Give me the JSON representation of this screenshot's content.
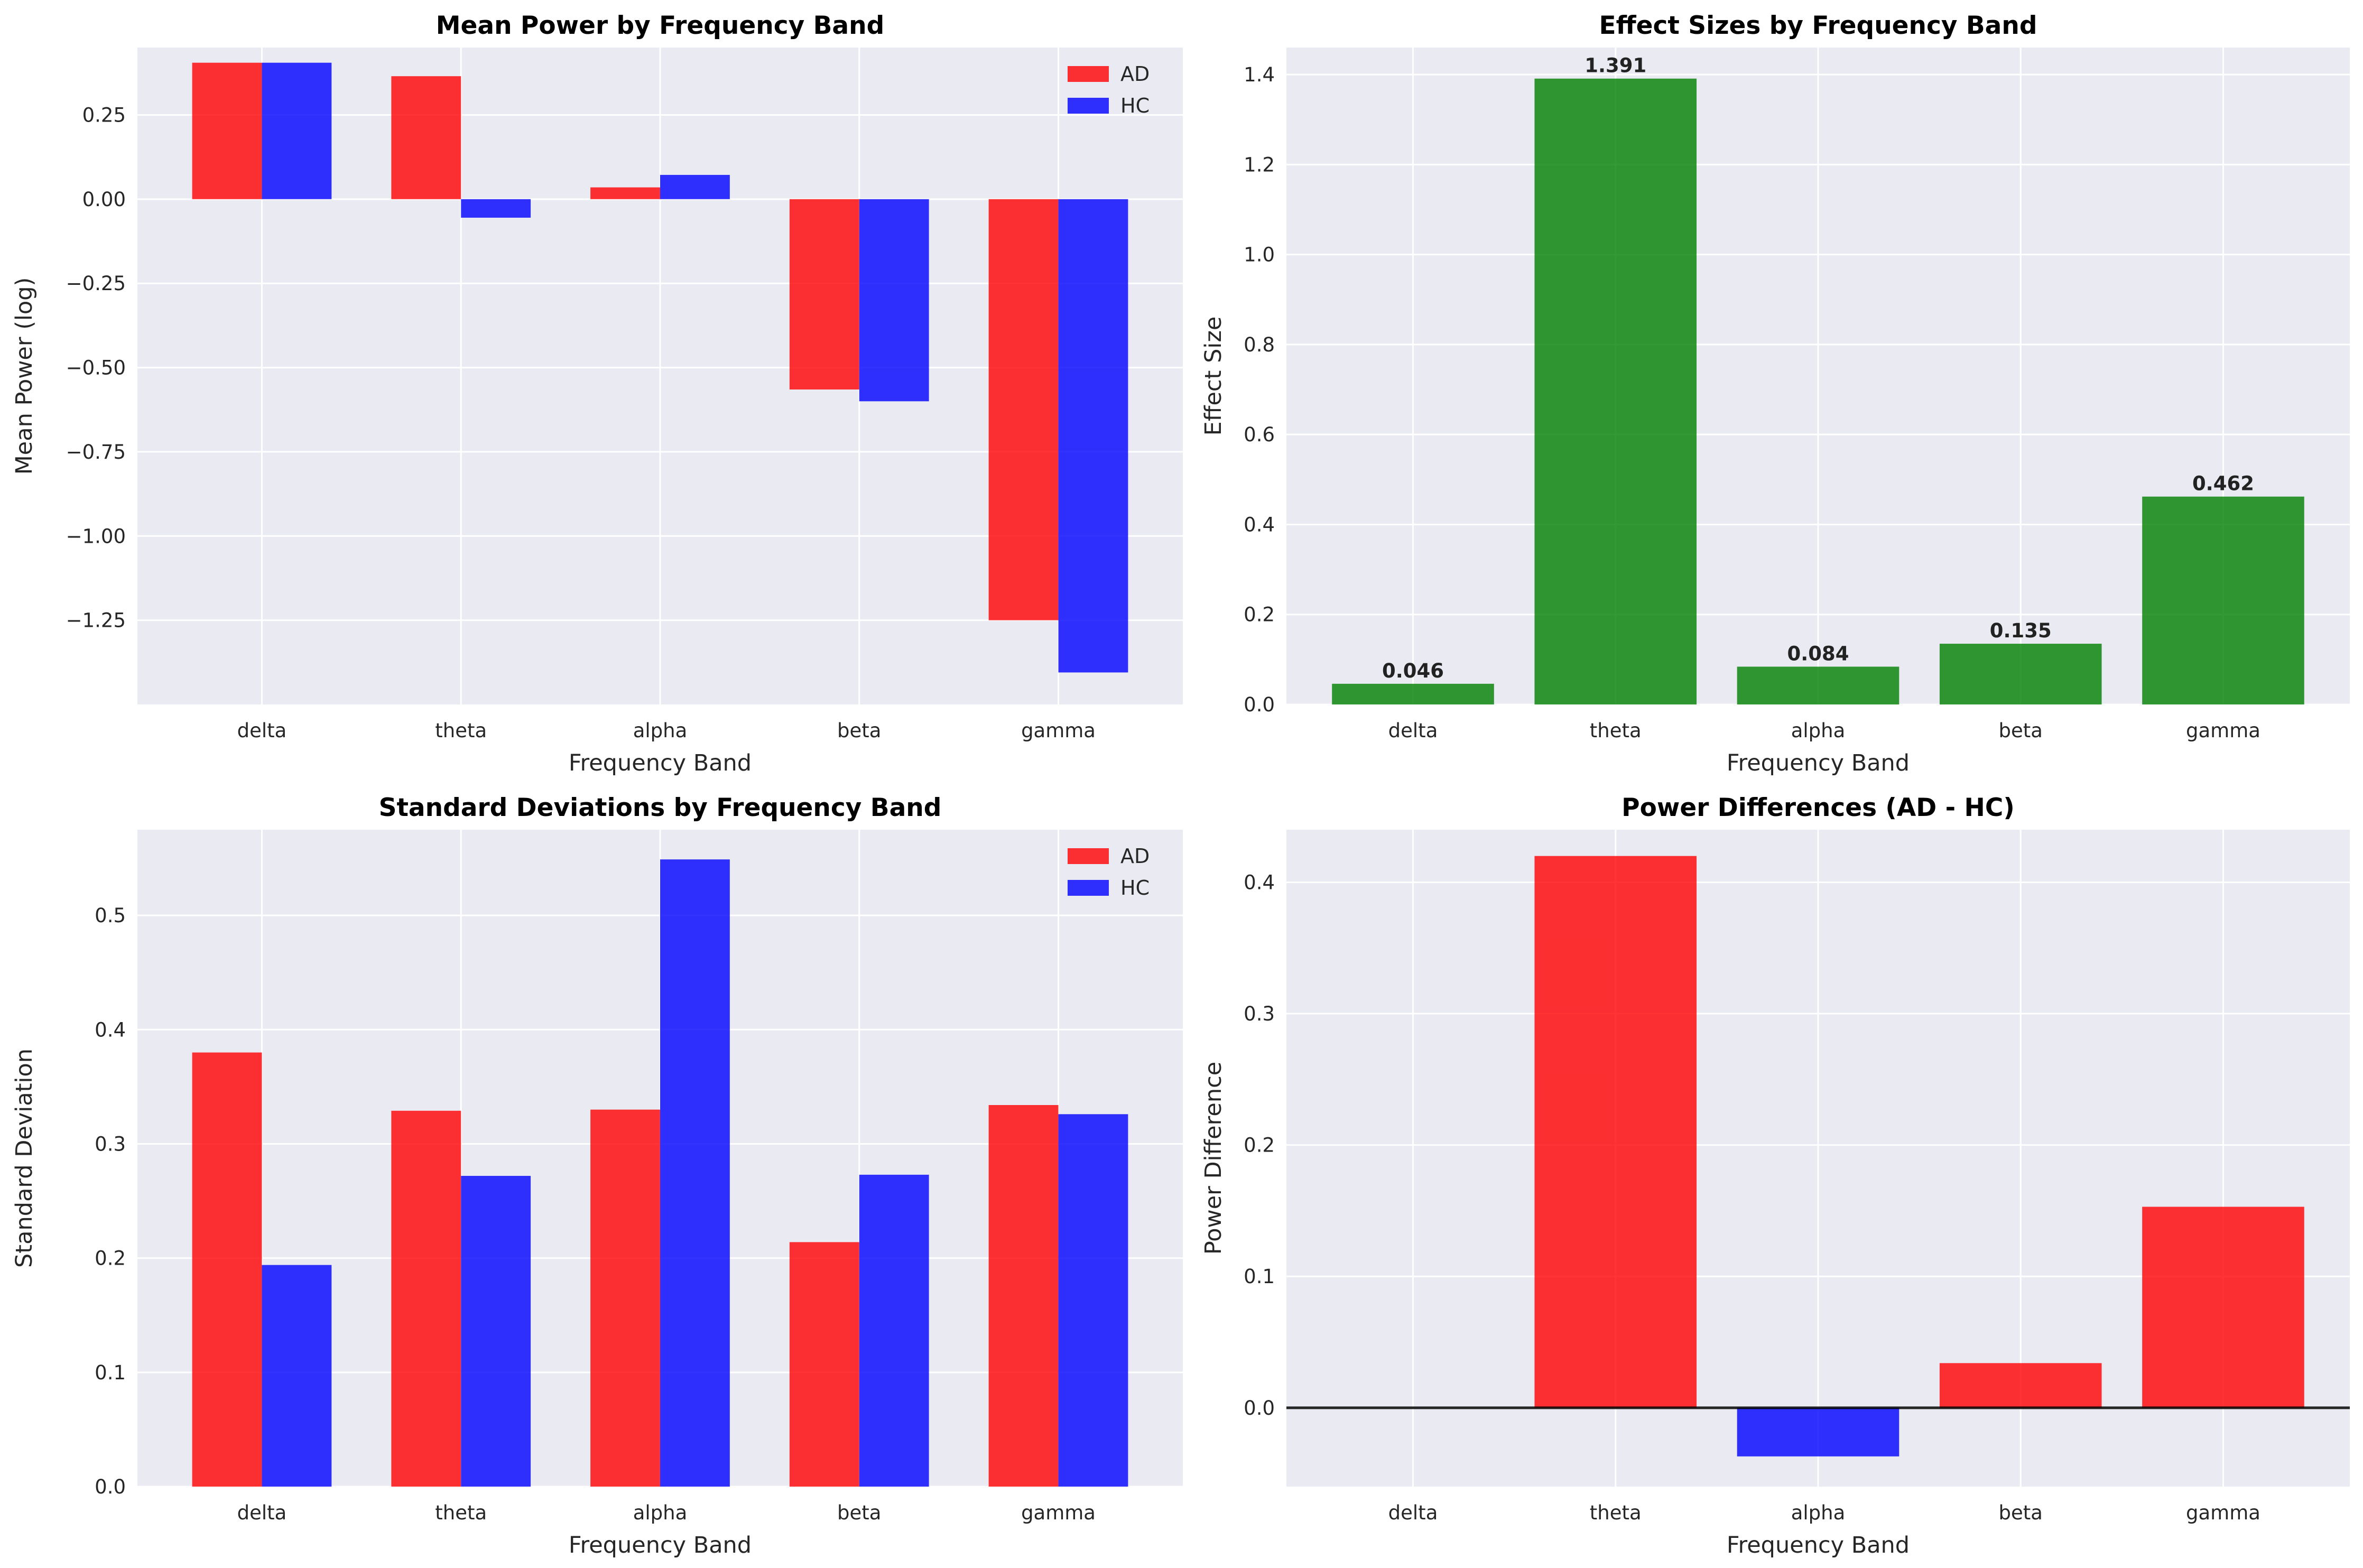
{
  "chart_data": [
    {
      "type": "bar",
      "title": "Mean Power by Frequency Band",
      "xlabel": "Frequency Band",
      "ylabel": "Mean Power (log)",
      "categories": [
        "delta",
        "theta",
        "alpha",
        "beta",
        "gamma"
      ],
      "series": [
        {
          "name": "AD",
          "color": "#ff0000",
          "values": [
            0.405,
            0.365,
            0.035,
            -0.565,
            -1.25
          ]
        },
        {
          "name": "HC",
          "color": "#0000ff",
          "values": [
            0.405,
            -0.055,
            0.072,
            -0.6,
            -1.405
          ]
        }
      ],
      "ylim": [
        -1.5,
        0.45
      ],
      "yticks": [
        0.25,
        0.0,
        -0.25,
        -0.5,
        -0.75,
        -1.0,
        -1.25
      ],
      "ytick_labels": [
        "0.25",
        "0.00",
        "−0.25",
        "−0.50",
        "−0.75",
        "−1.00",
        "−1.25"
      ],
      "grid": true,
      "legend": "upper right"
    },
    {
      "type": "bar",
      "title": "Effect Sizes by Frequency Band",
      "xlabel": "Frequency Band",
      "ylabel": "Effect Size",
      "categories": [
        "delta",
        "theta",
        "alpha",
        "beta",
        "gamma"
      ],
      "values": [
        0.046,
        1.391,
        0.084,
        0.135,
        0.462
      ],
      "data_labels": [
        "0.046",
        "1.391",
        "0.084",
        "0.135",
        "0.462"
      ],
      "color": "#008000",
      "ylim": [
        0,
        1.46
      ],
      "yticks": [
        0,
        0.2,
        0.4,
        0.6,
        0.8,
        1.0,
        1.2,
        1.4
      ],
      "ytick_labels": [
        "0.0",
        "0.2",
        "0.4",
        "0.6",
        "0.8",
        "1.0",
        "1.2",
        "1.4"
      ],
      "grid": true
    },
    {
      "type": "bar",
      "title": "Standard Deviations by Frequency Band",
      "xlabel": "Frequency Band",
      "ylabel": "Standard Deviation",
      "categories": [
        "delta",
        "theta",
        "alpha",
        "beta",
        "gamma"
      ],
      "series": [
        {
          "name": "AD",
          "color": "#ff0000",
          "values": [
            0.38,
            0.329,
            0.33,
            0.214,
            0.334
          ]
        },
        {
          "name": "HC",
          "color": "#0000ff",
          "values": [
            0.194,
            0.272,
            0.549,
            0.273,
            0.326
          ]
        }
      ],
      "ylim": [
        0,
        0.575
      ],
      "yticks": [
        0,
        0.1,
        0.2,
        0.3,
        0.4,
        0.5
      ],
      "ytick_labels": [
        "0.0",
        "0.1",
        "0.2",
        "0.3",
        "0.4",
        "0.5"
      ],
      "grid": true,
      "legend": "upper right"
    },
    {
      "type": "bar",
      "title": "Power Differences (AD - HC)",
      "xlabel": "Frequency Band",
      "ylabel": "Power Difference",
      "categories": [
        "delta",
        "theta",
        "alpha",
        "beta",
        "gamma"
      ],
      "values": [
        0.0,
        0.42,
        -0.037,
        0.034,
        0.153
      ],
      "positive_color": "#ff0000",
      "negative_color": "#0000ff",
      "ylim": [
        -0.06,
        0.44
      ],
      "yticks": [
        0.0,
        0.1,
        0.2,
        0.3,
        0.4
      ],
      "ytick_labels": [
        "0.0",
        "0.1",
        "0.2",
        "0.3",
        "0.4"
      ],
      "zero_line": true,
      "grid": true
    }
  ]
}
